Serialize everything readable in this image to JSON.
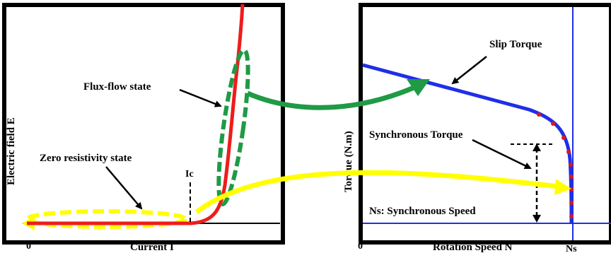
{
  "left_panel": {
    "y_axis_label": "Electric field E",
    "x_axis_label": "Current I",
    "origin_label": "0",
    "ic_label": "Ic",
    "flux_flow_label": "Flux-flow state",
    "zero_resistivity_label": "Zero resistivity state"
  },
  "right_panel": {
    "y_axis_label": "Torque (N.m)",
    "x_axis_label": "Rotation Speed N",
    "origin_label": "0",
    "ns_tick_label": "Ns",
    "slip_torque_label": "Slip Torque",
    "synchronous_torque_label": "Synchronous Torque",
    "synchronous_speed_label": "Ns: Synchronous Speed"
  },
  "colors": {
    "ei_curve": "#ee1c1c",
    "torque_curve": "#1f2fe6",
    "flux_flow_highlight": "#1f9a45",
    "zero_resistivity_highlight": "#ffff00",
    "sample_points": "#e01818",
    "frame": "#000000"
  },
  "icons": {
    "callout_arrows": "black-arrow-icon",
    "mapping_arrows": "curved-arrow-icon"
  }
}
